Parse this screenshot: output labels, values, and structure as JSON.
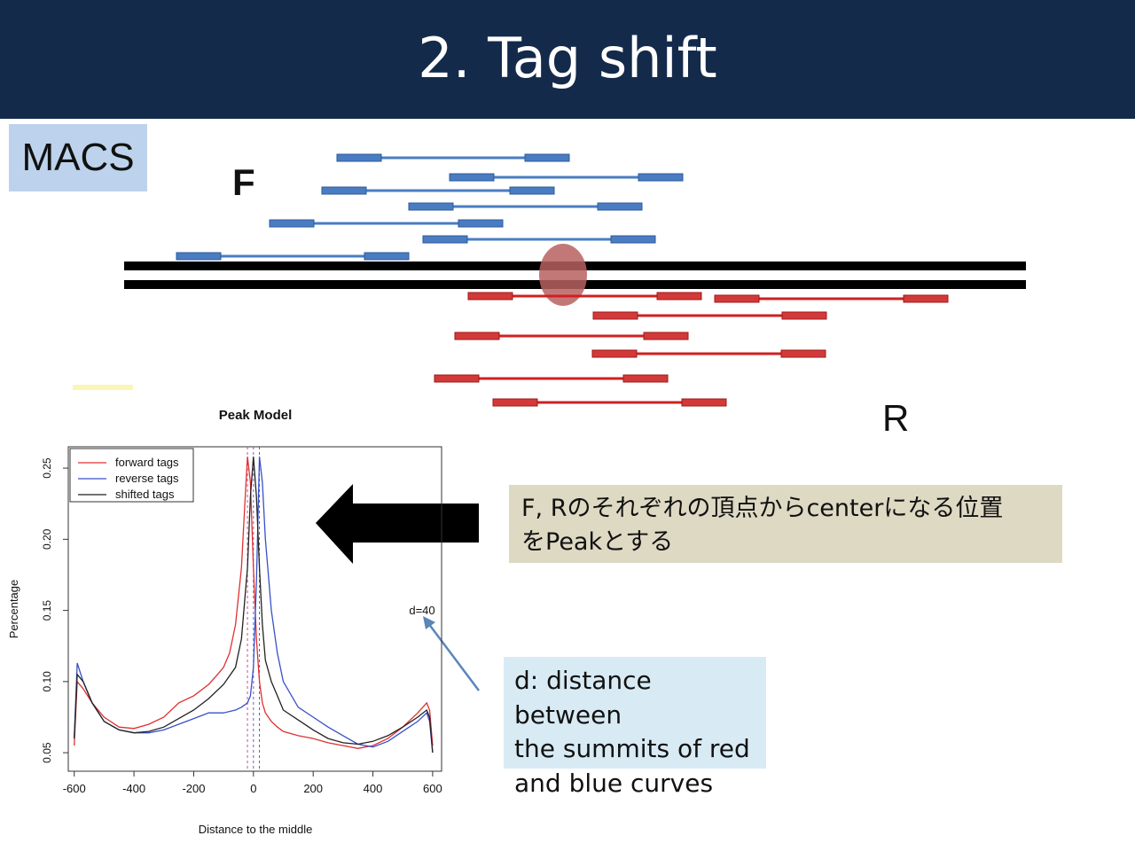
{
  "slide": {
    "title": "2. Tag shift",
    "badge": "MACS",
    "forward_label": "F",
    "reverse_label": "R",
    "callout_peak": [
      "F, Rのそれぞれの頂点からcenterになる位置",
      "をPeakとする"
    ],
    "callout_d": [
      "d: distance between",
      "the summits of red",
      "and blue curves"
    ]
  },
  "colors": {
    "header_bg": "#142a4a",
    "forward_read": "#4a7cc2",
    "reverse_read": "#d02020",
    "peak_marker": "#b86060",
    "badge_bg": "#bdd2ec",
    "callout_peak_bg": "#ded9c3",
    "callout_d_bg": "#d8ebf4"
  },
  "chart_data": {
    "type": "line",
    "title": "Peak Model",
    "xlabel": "Distance to the middle",
    "ylabel": "Percentage",
    "xlim": [
      -620,
      630
    ],
    "ylim": [
      0.037,
      0.265
    ],
    "xticks": [
      -600,
      -400,
      -200,
      0,
      200,
      400,
      600
    ],
    "xtick_labels": [
      "-600",
      "-400",
      "-200",
      "0",
      "200",
      "400",
      "600"
    ],
    "yticks": [
      0.05,
      0.1,
      0.15,
      0.2,
      0.25
    ],
    "ytick_labels": [
      "0.05",
      "0.10",
      "0.15",
      "0.20",
      "0.25"
    ],
    "legend": "top-left",
    "annotation": "d=40",
    "vlines": [
      -20,
      0,
      20
    ],
    "series": [
      {
        "name": "forward tags",
        "color": "#e03030",
        "x": [
          -600,
          -590,
          -570,
          -540,
          -500,
          -450,
          -400,
          -350,
          -300,
          -250,
          -200,
          -150,
          -120,
          -100,
          -80,
          -60,
          -40,
          -30,
          -20,
          -10,
          0,
          10,
          20,
          30,
          40,
          60,
          80,
          100,
          150,
          200,
          250,
          300,
          350,
          400,
          450,
          500,
          550,
          580,
          590,
          600
        ],
        "y": [
          0.055,
          0.1,
          0.095,
          0.085,
          0.075,
          0.068,
          0.067,
          0.07,
          0.075,
          0.085,
          0.09,
          0.098,
          0.105,
          0.11,
          0.12,
          0.14,
          0.18,
          0.22,
          0.258,
          0.24,
          0.18,
          0.13,
          0.1,
          0.085,
          0.078,
          0.072,
          0.068,
          0.065,
          0.062,
          0.06,
          0.057,
          0.055,
          0.053,
          0.055,
          0.06,
          0.068,
          0.078,
          0.085,
          0.08,
          0.055
        ]
      },
      {
        "name": "reverse tags",
        "color": "#3850c8",
        "x": [
          -600,
          -590,
          -570,
          -540,
          -500,
          -450,
          -400,
          -350,
          -300,
          -250,
          -200,
          -150,
          -100,
          -60,
          -40,
          -20,
          -10,
          0,
          10,
          20,
          30,
          40,
          60,
          80,
          100,
          150,
          200,
          250,
          300,
          350,
          400,
          450,
          500,
          550,
          580,
          590,
          600
        ],
        "y": [
          0.06,
          0.113,
          0.1,
          0.085,
          0.072,
          0.066,
          0.064,
          0.064,
          0.066,
          0.07,
          0.074,
          0.078,
          0.078,
          0.08,
          0.082,
          0.085,
          0.09,
          0.11,
          0.17,
          0.258,
          0.24,
          0.2,
          0.15,
          0.12,
          0.1,
          0.082,
          0.075,
          0.068,
          0.062,
          0.056,
          0.054,
          0.058,
          0.065,
          0.072,
          0.078,
          0.072,
          0.05
        ]
      },
      {
        "name": "shifted tags",
        "color": "#222222",
        "x": [
          -600,
          -590,
          -570,
          -540,
          -500,
          -450,
          -400,
          -350,
          -300,
          -250,
          -200,
          -150,
          -100,
          -60,
          -40,
          -20,
          -10,
          0,
          10,
          20,
          30,
          40,
          60,
          80,
          100,
          150,
          200,
          250,
          300,
          350,
          400,
          450,
          500,
          550,
          580,
          590,
          600
        ],
        "y": [
          0.06,
          0.105,
          0.1,
          0.085,
          0.072,
          0.066,
          0.064,
          0.065,
          0.068,
          0.074,
          0.08,
          0.088,
          0.098,
          0.11,
          0.13,
          0.18,
          0.23,
          0.258,
          0.23,
          0.18,
          0.14,
          0.115,
          0.1,
          0.09,
          0.08,
          0.073,
          0.066,
          0.06,
          0.057,
          0.056,
          0.058,
          0.062,
          0.068,
          0.075,
          0.08,
          0.075,
          0.05
        ]
      }
    ]
  }
}
